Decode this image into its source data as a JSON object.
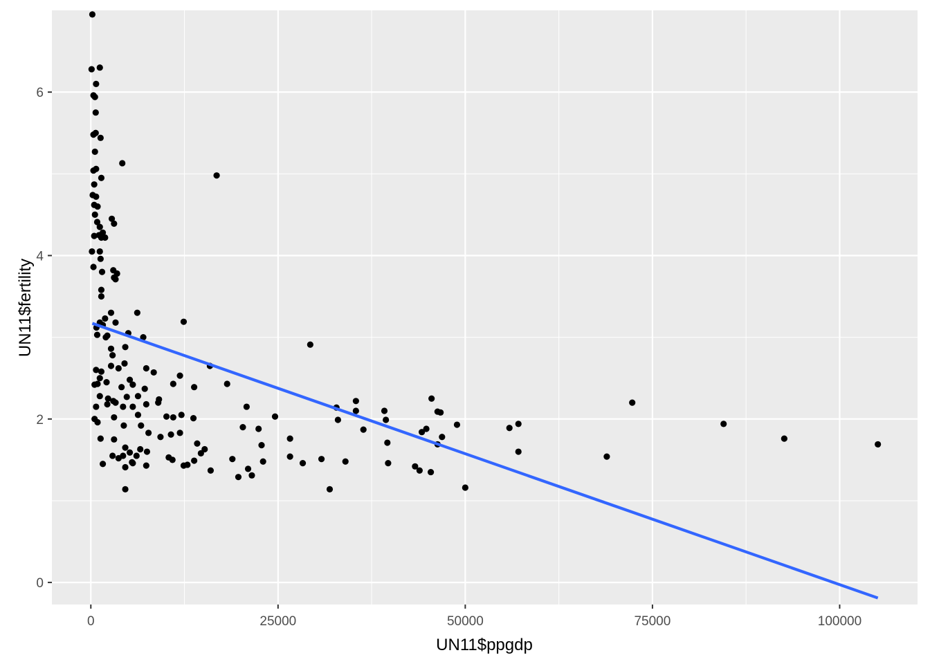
{
  "chart_data": {
    "type": "scatter",
    "title": "",
    "xlabel": "UN11$ppgdp",
    "ylabel": "UN11$fertility",
    "xlim": [
      -5200,
      110400
    ],
    "ylim": [
      -0.27,
      7.0
    ],
    "x_ticks": [
      0,
      25000,
      50000,
      75000,
      100000
    ],
    "x_tick_labels": [
      "0",
      "25000",
      "50000",
      "75000",
      "100000"
    ],
    "y_ticks": [
      0,
      2,
      4,
      6
    ],
    "y_tick_labels": [
      "0",
      "2",
      "4",
      "6"
    ],
    "grid": true,
    "legend": "none",
    "colors": {
      "panel": "#EBEBEB",
      "grid": "#FFFFFF",
      "points": "#000000",
      "line": "#3366FF"
    },
    "series": [
      {
        "type": "scatter",
        "points": [
          [
            200,
            6.95
          ],
          [
            100,
            6.28
          ],
          [
            1200,
            6.3
          ],
          [
            350,
            5.96
          ],
          [
            550,
            5.94
          ],
          [
            700,
            6.1
          ],
          [
            650,
            5.75
          ],
          [
            350,
            5.48
          ],
          [
            650,
            5.5
          ],
          [
            1300,
            5.44
          ],
          [
            550,
            5.27
          ],
          [
            4200,
            5.13
          ],
          [
            350,
            5.04
          ],
          [
            700,
            5.06
          ],
          [
            1400,
            4.95
          ],
          [
            16800,
            4.98
          ],
          [
            450,
            4.87
          ],
          [
            250,
            4.74
          ],
          [
            700,
            4.72
          ],
          [
            450,
            4.62
          ],
          [
            900,
            4.6
          ],
          [
            550,
            4.5
          ],
          [
            850,
            4.41
          ],
          [
            2800,
            4.45
          ],
          [
            3100,
            4.39
          ],
          [
            1200,
            4.35
          ],
          [
            450,
            4.24
          ],
          [
            1100,
            4.25
          ],
          [
            1600,
            4.28
          ],
          [
            1400,
            4.22
          ],
          [
            1900,
            4.22
          ],
          [
            150,
            4.05
          ],
          [
            1200,
            4.05
          ],
          [
            1300,
            3.96
          ],
          [
            350,
            3.86
          ],
          [
            1500,
            3.8
          ],
          [
            3000,
            3.82
          ],
          [
            3100,
            3.73
          ],
          [
            3500,
            3.78
          ],
          [
            3300,
            3.71
          ],
          [
            1400,
            3.58
          ],
          [
            1400,
            3.5
          ],
          [
            1200,
            3.18
          ],
          [
            750,
            3.12
          ],
          [
            850,
            3.03
          ],
          [
            2700,
            3.3
          ],
          [
            6200,
            3.3
          ],
          [
            12400,
            3.19
          ],
          [
            1900,
            3.23
          ],
          [
            1600,
            3.15
          ],
          [
            2200,
            3.02
          ],
          [
            3300,
            3.18
          ],
          [
            2000,
            3.0
          ],
          [
            5000,
            3.05
          ],
          [
            7000,
            3.0
          ],
          [
            29300,
            2.91
          ],
          [
            2700,
            2.86
          ],
          [
            4600,
            2.88
          ],
          [
            2900,
            2.78
          ],
          [
            700,
            2.6
          ],
          [
            1400,
            2.58
          ],
          [
            1200,
            2.5
          ],
          [
            4500,
            2.68
          ],
          [
            2700,
            2.65
          ],
          [
            3700,
            2.62
          ],
          [
            7400,
            2.62
          ],
          [
            8400,
            2.57
          ],
          [
            11900,
            2.53
          ],
          [
            15900,
            2.65
          ],
          [
            18200,
            2.43
          ],
          [
            500,
            2.42
          ],
          [
            900,
            2.43
          ],
          [
            2100,
            2.45
          ],
          [
            5200,
            2.48
          ],
          [
            4100,
            2.39
          ],
          [
            5600,
            2.42
          ],
          [
            7200,
            2.37
          ],
          [
            11000,
            2.43
          ],
          [
            13800,
            2.39
          ],
          [
            1200,
            2.28
          ],
          [
            2300,
            2.25
          ],
          [
            3000,
            2.22
          ],
          [
            4800,
            2.27
          ],
          [
            6300,
            2.28
          ],
          [
            9100,
            2.24
          ],
          [
            35400,
            2.22
          ],
          [
            45500,
            2.25
          ],
          [
            72300,
            2.2
          ],
          [
            700,
            2.15
          ],
          [
            2200,
            2.18
          ],
          [
            3300,
            2.2
          ],
          [
            4300,
            2.15
          ],
          [
            5600,
            2.15
          ],
          [
            7400,
            2.18
          ],
          [
            9000,
            2.2
          ],
          [
            20800,
            2.15
          ],
          [
            32800,
            2.14
          ],
          [
            35400,
            2.1
          ],
          [
            39200,
            2.1
          ],
          [
            46300,
            2.09
          ],
          [
            46700,
            2.08
          ],
          [
            3100,
            2.02
          ],
          [
            6300,
            2.05
          ],
          [
            10100,
            2.03
          ],
          [
            11000,
            2.02
          ],
          [
            12100,
            2.05
          ],
          [
            13700,
            2.01
          ],
          [
            24600,
            2.03
          ],
          [
            500,
            2.0
          ],
          [
            900,
            1.96
          ],
          [
            33000,
            1.99
          ],
          [
            39400,
            1.99
          ],
          [
            84500,
            1.94
          ],
          [
            4400,
            1.92
          ],
          [
            6700,
            1.92
          ],
          [
            20300,
            1.9
          ],
          [
            22400,
            1.88
          ],
          [
            36400,
            1.87
          ],
          [
            44800,
            1.88
          ],
          [
            48900,
            1.93
          ],
          [
            55900,
            1.89
          ],
          [
            57100,
            1.94
          ],
          [
            7700,
            1.83
          ],
          [
            10700,
            1.81
          ],
          [
            11900,
            1.83
          ],
          [
            44200,
            1.84
          ],
          [
            46900,
            1.78
          ],
          [
            1300,
            1.76
          ],
          [
            3100,
            1.75
          ],
          [
            9300,
            1.78
          ],
          [
            26600,
            1.76
          ],
          [
            39600,
            1.71
          ],
          [
            92600,
            1.76
          ],
          [
            14200,
            1.7
          ],
          [
            22800,
            1.68
          ],
          [
            46300,
            1.69
          ],
          [
            105100,
            1.69
          ],
          [
            4600,
            1.65
          ],
          [
            6600,
            1.63
          ],
          [
            7500,
            1.6
          ],
          [
            15200,
            1.63
          ],
          [
            14700,
            1.58
          ],
          [
            5200,
            1.59
          ],
          [
            57100,
            1.6
          ],
          [
            2900,
            1.55
          ],
          [
            3700,
            1.52
          ],
          [
            4300,
            1.55
          ],
          [
            6100,
            1.55
          ],
          [
            10400,
            1.53
          ],
          [
            10900,
            1.5
          ],
          [
            13800,
            1.49
          ],
          [
            18900,
            1.51
          ],
          [
            26600,
            1.54
          ],
          [
            30800,
            1.51
          ],
          [
            68900,
            1.54
          ],
          [
            5500,
            1.47
          ],
          [
            23000,
            1.48
          ],
          [
            34000,
            1.48
          ],
          [
            39700,
            1.46
          ],
          [
            1600,
            1.45
          ],
          [
            4600,
            1.41
          ],
          [
            5600,
            1.46
          ],
          [
            7400,
            1.43
          ],
          [
            12400,
            1.43
          ],
          [
            12900,
            1.44
          ],
          [
            16000,
            1.37
          ],
          [
            21000,
            1.39
          ],
          [
            28300,
            1.46
          ],
          [
            43300,
            1.42
          ],
          [
            43900,
            1.37
          ],
          [
            45400,
            1.35
          ],
          [
            19700,
            1.29
          ],
          [
            21500,
            1.31
          ],
          [
            4600,
            1.14
          ],
          [
            31900,
            1.14
          ],
          [
            50000,
            1.16
          ]
        ]
      },
      {
        "type": "line",
        "name": "",
        "x": [
          200,
          105100
        ],
        "y": [
          3.17,
          -0.19
        ]
      }
    ]
  }
}
